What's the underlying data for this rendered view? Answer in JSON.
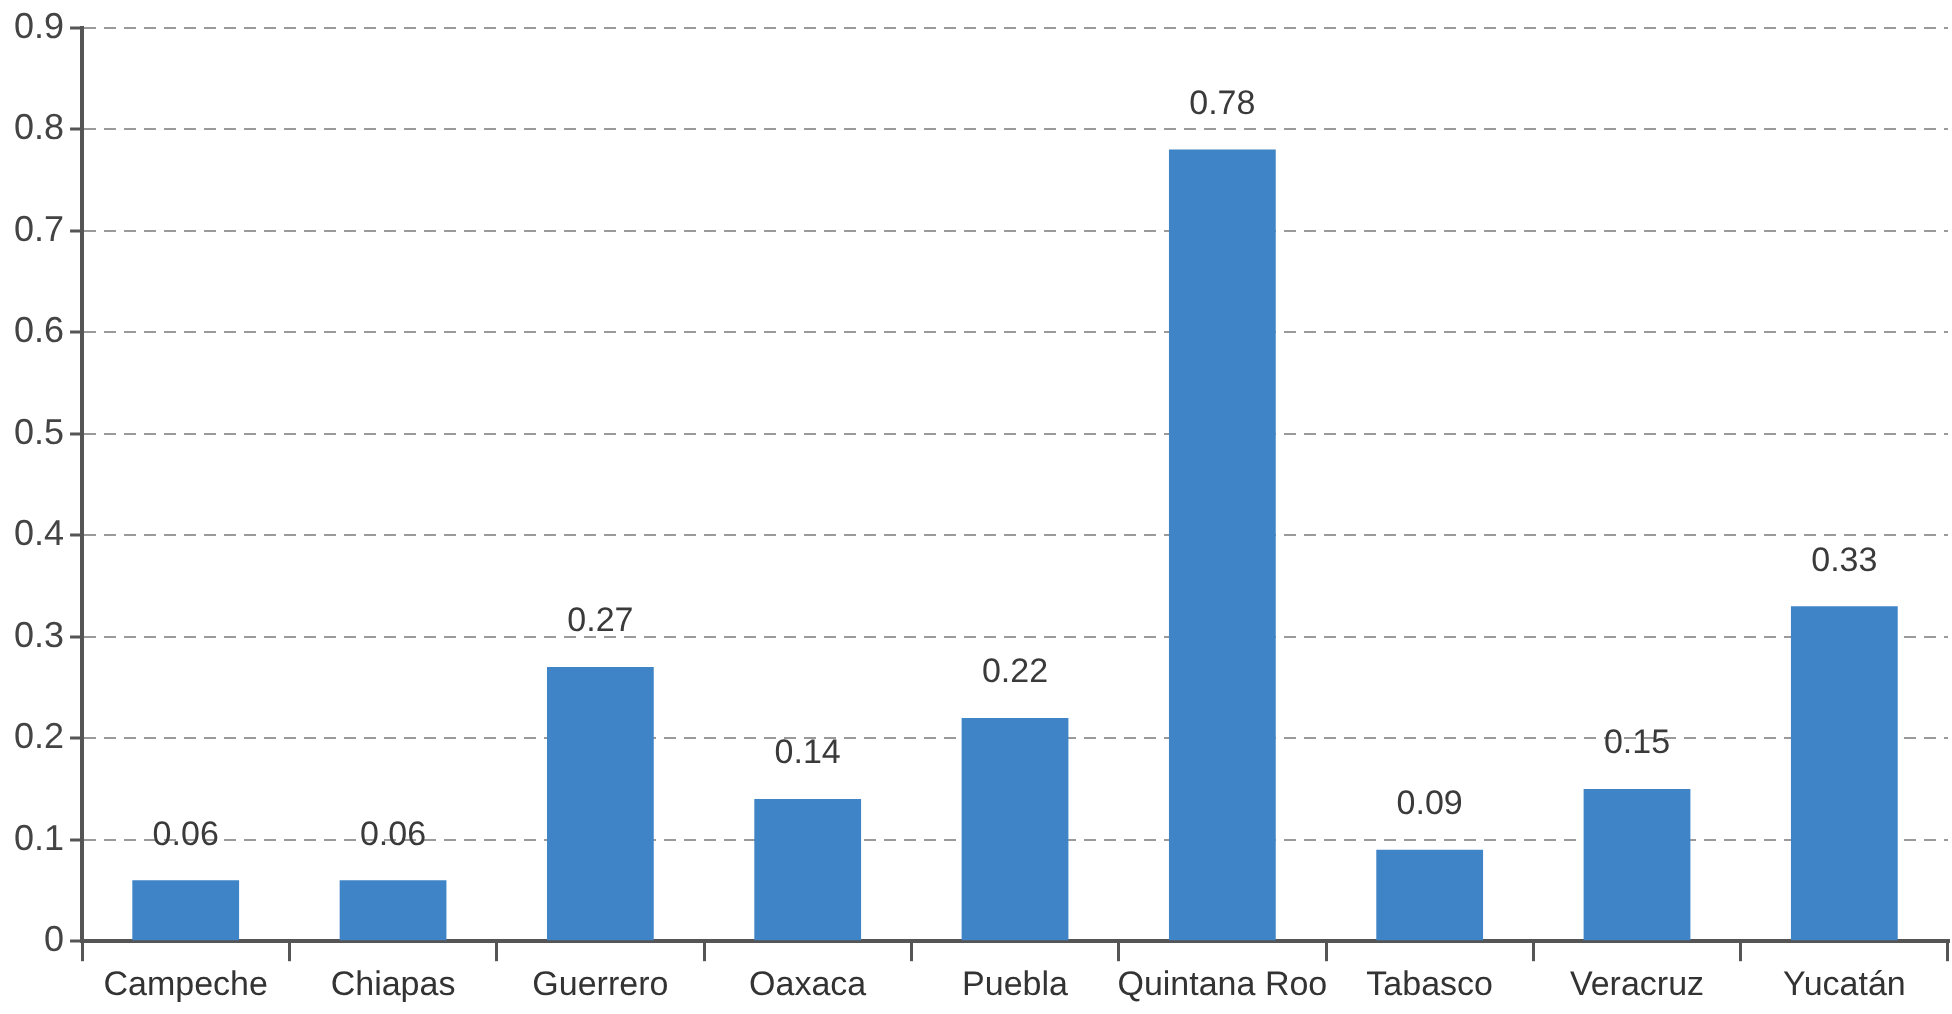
{
  "chart_data": {
    "type": "bar",
    "categories": [
      "Campeche",
      "Chiapas",
      "Guerrero",
      "Oaxaca",
      "Puebla",
      "Quintana Roo",
      "Tabasco",
      "Veracruz",
      "Yucatán"
    ],
    "values": [
      0.06,
      0.06,
      0.27,
      0.14,
      0.22,
      0.78,
      0.09,
      0.15,
      0.33
    ],
    "color": "#3e84c6",
    "ylim": [
      0,
      0.9
    ],
    "yticks": [
      0,
      0.1,
      0.2,
      0.3,
      0.4,
      0.5,
      0.6,
      0.7,
      0.8,
      0.9
    ],
    "grid": "y",
    "data_labels": true
  }
}
